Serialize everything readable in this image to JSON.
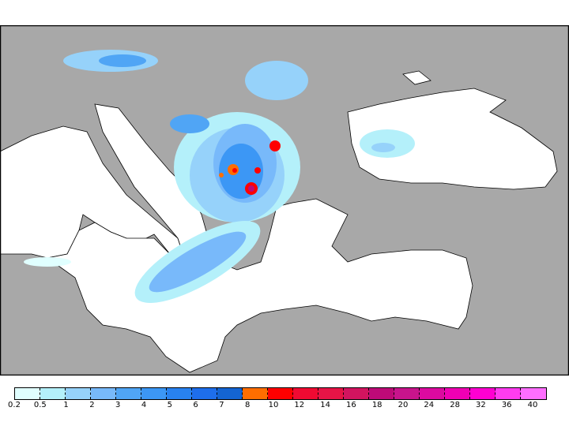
{
  "map": {
    "land_color": "#a8a8a8",
    "sea_color": "#ffffff",
    "border_color": "#000000"
  },
  "legend": {
    "labels": [
      "0.2",
      "0.5",
      "1",
      "2",
      "3",
      "4",
      "5",
      "6",
      "7",
      "8",
      "10",
      "12",
      "14",
      "16",
      "18",
      "20",
      "24",
      "28",
      "32",
      "36",
      "40"
    ],
    "colors": [
      "#e0ffff",
      "#b4f0fa",
      "#96d2fa",
      "#78b9fa",
      "#50a5f5",
      "#3c97f5",
      "#2882f0",
      "#1e6eeb",
      "#1464d2",
      "#ff6e00",
      "#ff0000",
      "#f00a32",
      "#e61446",
      "#d2145f",
      "#be0a78",
      "#c8148c",
      "#dc0aa0",
      "#f000b4",
      "#ff00d2",
      "#ff3cf0",
      "#ff6eff"
    ]
  }
}
